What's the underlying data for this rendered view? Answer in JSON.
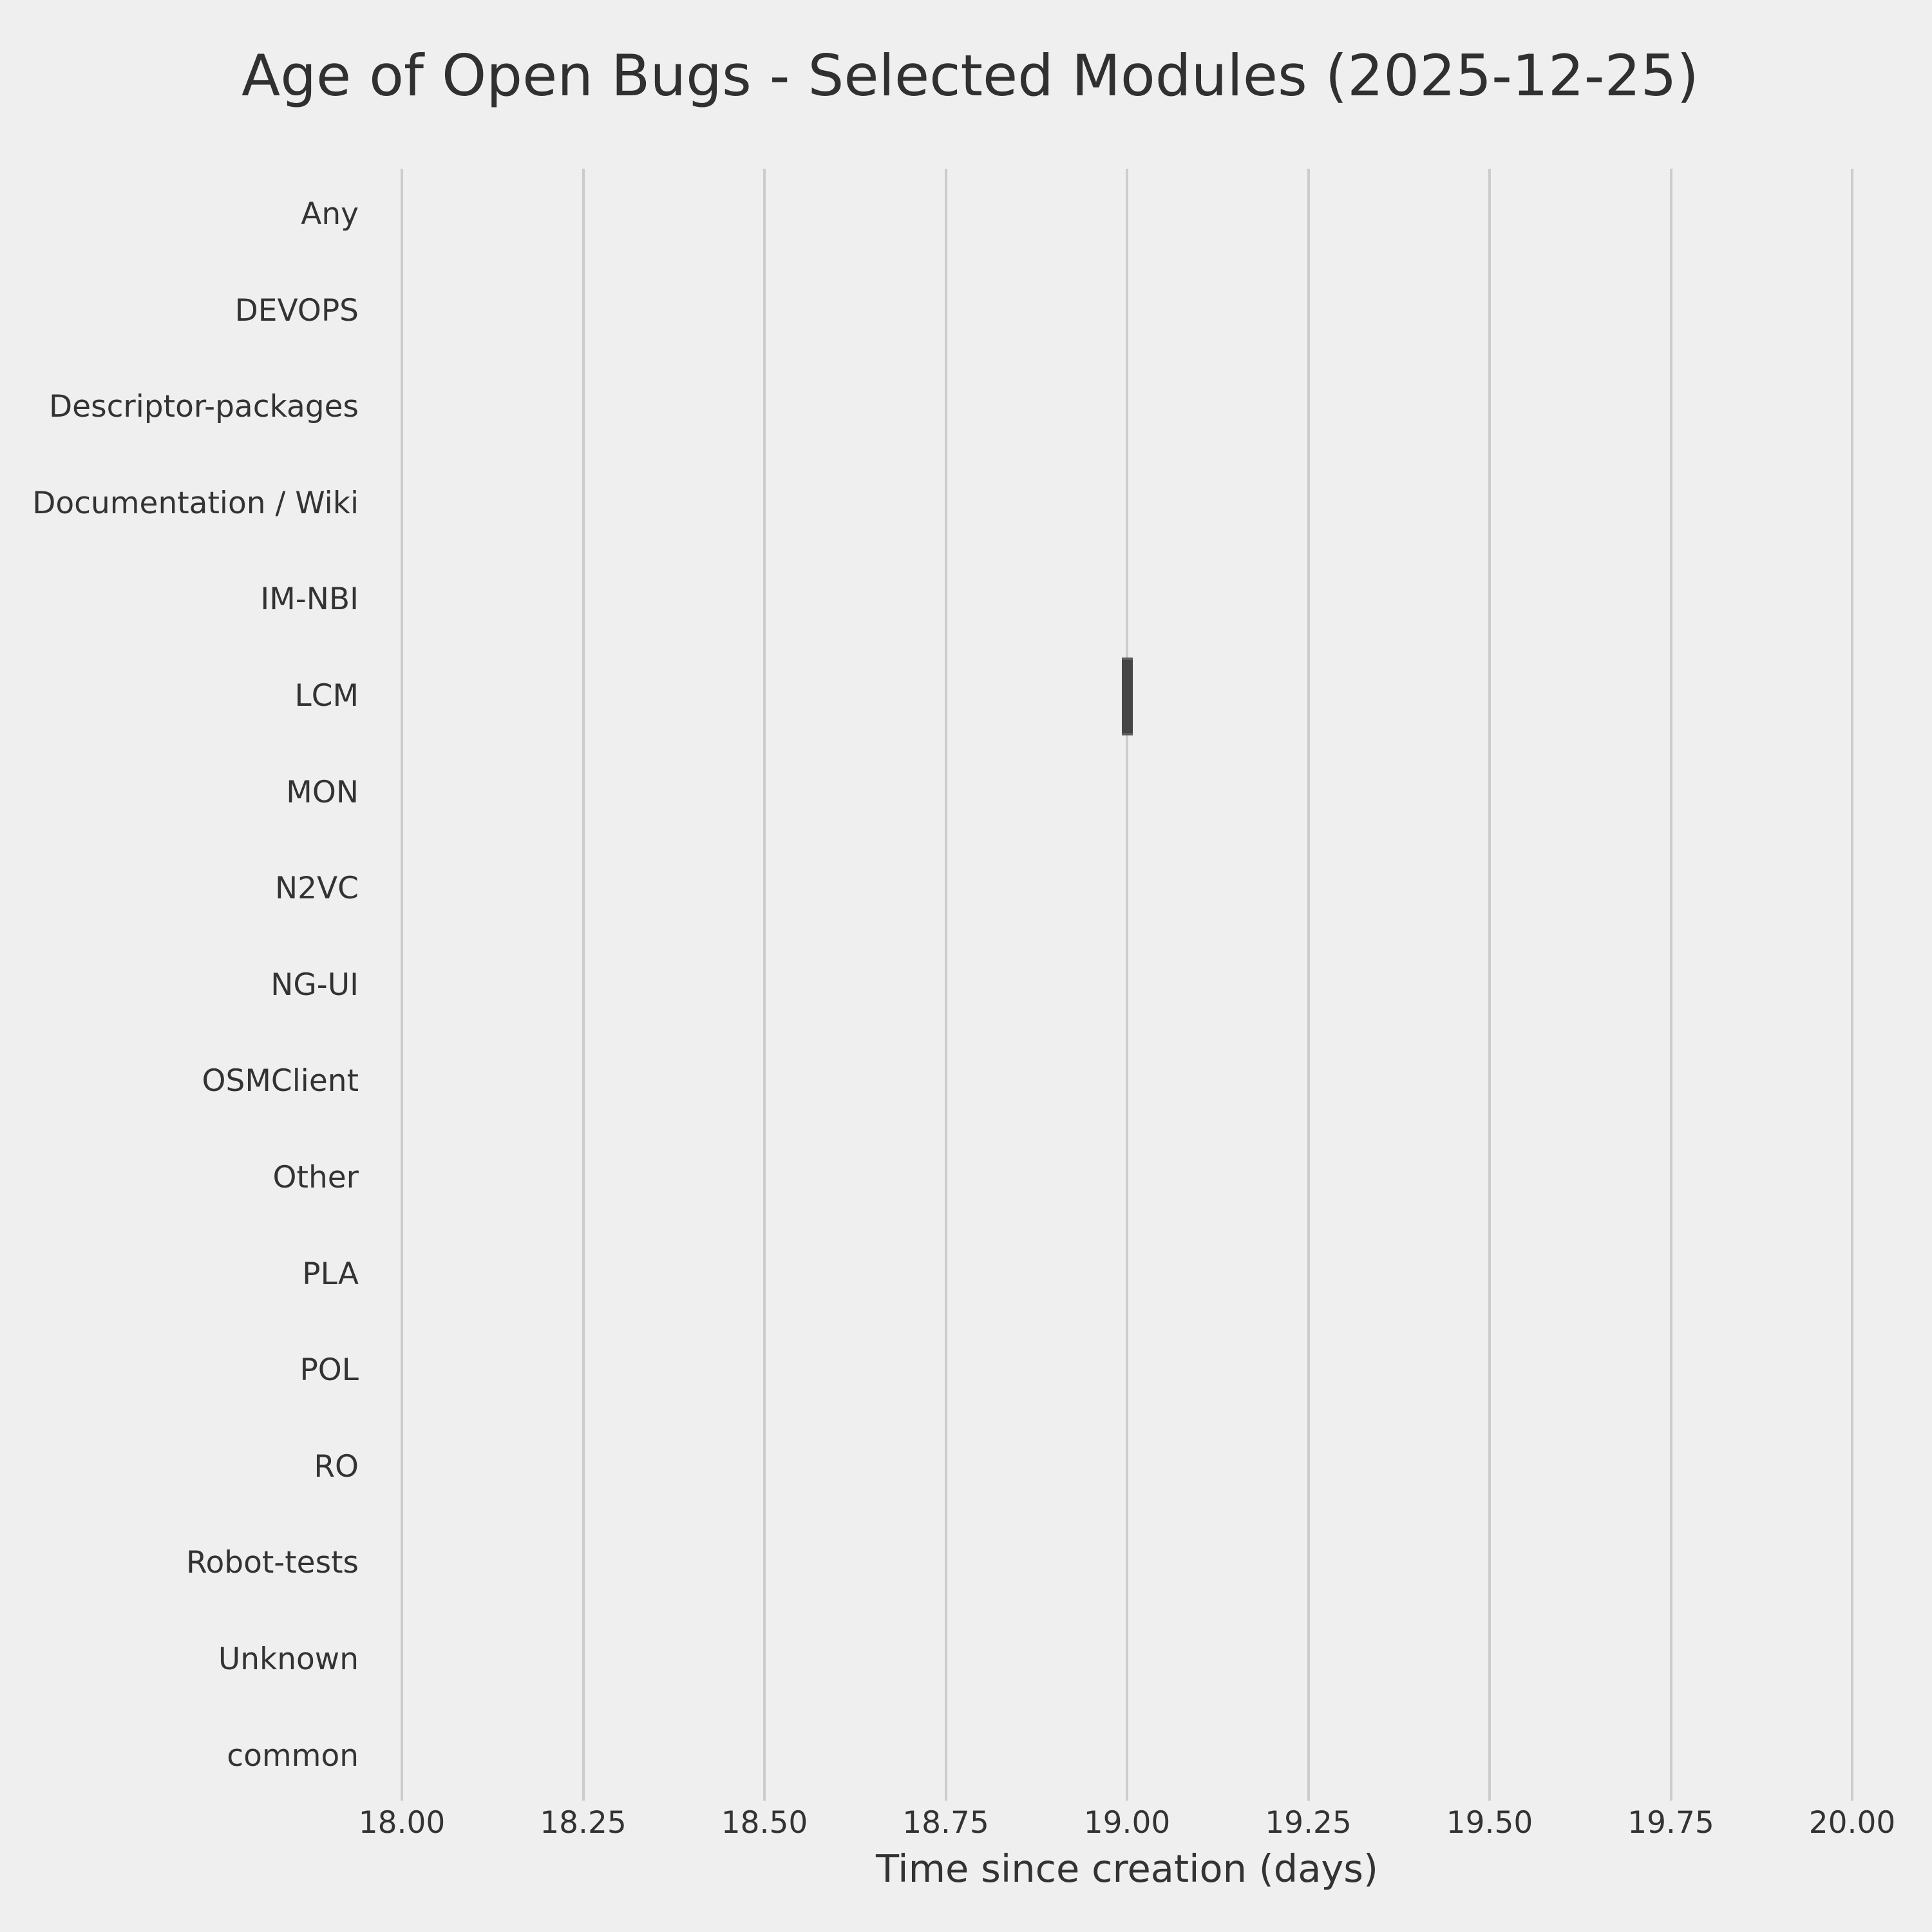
{
  "figure": {
    "background_color": "#efefef",
    "grid_color": "#cccccc",
    "text_color": "#333333",
    "box_fill_color": "#454545",
    "box_edge_color": "#5c5c5c"
  },
  "chart_data": {
    "type": "bar",
    "subtype": "horizontal-boxplot",
    "title": "Age of Open Bugs - Selected Modules (2025-12-25)",
    "xlabel": "Time since creation (days)",
    "ylabel": "",
    "categories": [
      "Any",
      "DEVOPS",
      "Descriptor-packages",
      "Documentation / Wiki",
      "IM-NBI",
      "LCM",
      "MON",
      "N2VC",
      "NG-UI",
      "OSMClient",
      "Other",
      "PLA",
      "POL",
      "RO",
      "Robot-tests",
      "Unknown",
      "common"
    ],
    "values": [
      null,
      null,
      null,
      null,
      null,
      19.0,
      null,
      null,
      null,
      null,
      null,
      null,
      null,
      null,
      null,
      null,
      null
    ],
    "points": [
      {
        "category": "LCM",
        "value": 19.0,
        "box_min": 19.0,
        "box_max": 19.0
      }
    ],
    "xlim": [
      18.0,
      20.0
    ],
    "xticks": [
      18.0,
      18.25,
      18.5,
      18.75,
      19.0,
      19.25,
      19.5,
      19.75,
      20.0
    ],
    "xtick_labels": [
      "18.00",
      "18.25",
      "18.50",
      "18.75",
      "19.00",
      "19.25",
      "19.50",
      "19.75",
      "20.00"
    ],
    "grid": "vertical",
    "legend": "none"
  }
}
